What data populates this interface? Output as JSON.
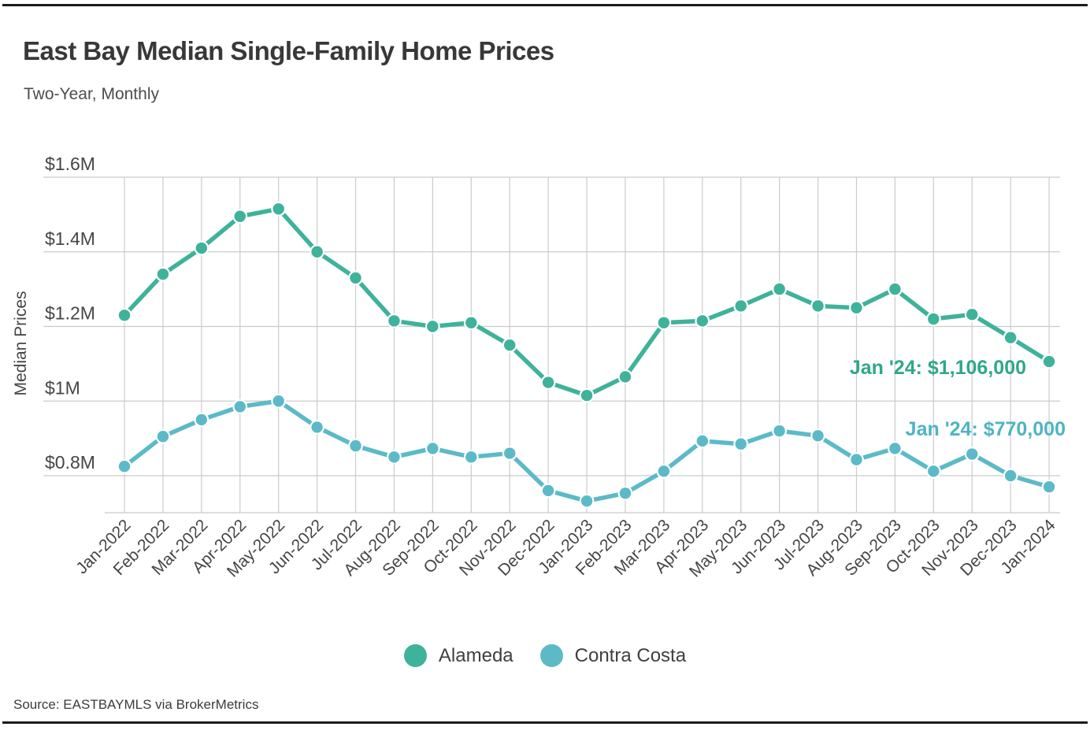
{
  "header": {
    "title": "East Bay Median Single-Family Home Prices",
    "subtitle": "Two-Year, Monthly"
  },
  "chart_data": {
    "type": "line",
    "title": "East Bay Median Single-Family Home Prices",
    "subtitle": "Two-Year, Monthly",
    "xlabel": "",
    "ylabel": "Median Prices",
    "grid": true,
    "legend_position": "bottom",
    "x_tick_rotation": -45,
    "ylim": [
      0.7,
      1.6
    ],
    "y_ticks": {
      "labels": [
        "$1.6M",
        "$1.4M",
        "$1.2M",
        "$1M",
        "$0.8M"
      ],
      "values": [
        1.6,
        1.4,
        1.2,
        1.0,
        0.8
      ]
    },
    "unit": "millions USD",
    "categories": [
      "Jan-2022",
      "Feb-2022",
      "Mar-2022",
      "Apr-2022",
      "May-2022",
      "Jun-2022",
      "Jul-2022",
      "Aug-2022",
      "Sep-2022",
      "Oct-2022",
      "Nov-2022",
      "Dec-2022",
      "Jan-2023",
      "Feb-2023",
      "Mar-2023",
      "Apr-2023",
      "May-2023",
      "Jun-2023",
      "Jul-2023",
      "Aug-2023",
      "Sep-2023",
      "Oct-2023",
      "Nov-2023",
      "Dec-2023",
      "Jan-2024"
    ],
    "series": [
      {
        "name": "Alameda",
        "color": "#3fb29a",
        "values": [
          1.23,
          1.34,
          1.41,
          1.495,
          1.515,
          1.4,
          1.33,
          1.215,
          1.2,
          1.21,
          1.15,
          1.05,
          1.015,
          1.065,
          1.21,
          1.215,
          1.255,
          1.3,
          1.255,
          1.25,
          1.3,
          1.22,
          1.232,
          1.17,
          1.106
        ]
      },
      {
        "name": "Contra Costa",
        "color": "#5cbac8",
        "values": [
          0.825,
          0.905,
          0.95,
          0.985,
          1.0,
          0.93,
          0.88,
          0.85,
          0.873,
          0.85,
          0.86,
          0.76,
          0.732,
          0.753,
          0.812,
          0.893,
          0.885,
          0.92,
          0.907,
          0.843,
          0.873,
          0.812,
          0.858,
          0.8,
          0.77
        ]
      }
    ],
    "annotations": [
      {
        "series": "Alameda",
        "label": "Jan '24: $1,106,000",
        "value": 1.106,
        "color": "#2fa78c"
      },
      {
        "series": "Contra Costa",
        "label": "Jan '24: $770,000",
        "value": 0.77,
        "color": "#4fb4c3"
      }
    ]
  },
  "legend": {
    "items": [
      {
        "label": "Alameda",
        "color": "#3fb29a"
      },
      {
        "label": "Contra Costa",
        "color": "#5cbac8"
      }
    ]
  },
  "footer": {
    "source": "Source:  EASTBAYMLS via BrokerMetrics"
  }
}
